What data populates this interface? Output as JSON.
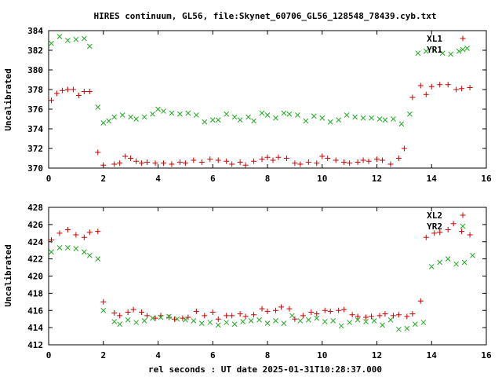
{
  "title": "HIRES continuum, GL56, file:Skynet_60706_GL56_128548_78439.cyb.txt",
  "xlabel": "rel seconds : UT date 2025-01-31T10:28:37.000",
  "colors": {
    "series1": "#cc0000",
    "series2": "#22aa22",
    "axis": "#000000"
  },
  "chart_data": [
    {
      "type": "scatter",
      "ylabel": "Uncalibrated",
      "xlim": [
        0,
        16
      ],
      "ylim": [
        370,
        384
      ],
      "xticks": [
        0,
        2,
        4,
        6,
        8,
        10,
        12,
        14,
        16
      ],
      "yticks": [
        370,
        372,
        374,
        376,
        378,
        380,
        382,
        384
      ],
      "legend_position": "top-right",
      "grid": false,
      "series": [
        {
          "name": "XL1",
          "marker": "plus",
          "color": "#cc0000",
          "x": [
            0.1,
            0.3,
            0.5,
            0.7,
            0.9,
            1.1,
            1.3,
            1.5,
            1.8,
            2.0,
            2.4,
            2.6,
            2.8,
            3.0,
            3.2,
            3.4,
            3.6,
            3.9,
            4.2,
            4.5,
            4.8,
            5.0,
            5.3,
            5.6,
            5.9,
            6.2,
            6.5,
            6.7,
            7.0,
            7.2,
            7.5,
            7.8,
            8.0,
            8.2,
            8.4,
            8.7,
            9.0,
            9.2,
            9.5,
            9.8,
            10.0,
            10.2,
            10.5,
            10.8,
            11.0,
            11.3,
            11.5,
            11.7,
            12.0,
            12.2,
            12.5,
            12.8,
            13.0,
            13.3,
            13.6,
            13.8,
            14.0,
            14.3,
            14.6,
            14.9,
            15.1,
            15.4
          ],
          "y": [
            376.9,
            377.6,
            377.9,
            378.0,
            378.0,
            377.4,
            377.8,
            377.8,
            371.6,
            370.3,
            370.4,
            370.5,
            371.2,
            371.0,
            370.7,
            370.5,
            370.6,
            370.5,
            370.5,
            370.4,
            370.6,
            370.5,
            370.8,
            370.6,
            370.9,
            370.8,
            370.7,
            370.4,
            370.6,
            370.3,
            370.7,
            370.9,
            371.1,
            370.8,
            371.1,
            371.0,
            370.5,
            370.4,
            370.6,
            370.5,
            371.2,
            371.0,
            370.8,
            370.6,
            370.5,
            370.6,
            370.8,
            370.7,
            370.9,
            370.8,
            370.4,
            371.0,
            372.0,
            377.2,
            378.4,
            377.5,
            378.3,
            378.5,
            378.5,
            378.0,
            378.1,
            378.2
          ]
        },
        {
          "name": "YR1",
          "marker": "cross",
          "color": "#22aa22",
          "x": [
            0.1,
            0.4,
            0.7,
            1.0,
            1.3,
            1.5,
            1.8,
            2.0,
            2.2,
            2.4,
            2.7,
            3.0,
            3.2,
            3.5,
            3.8,
            4.0,
            4.2,
            4.5,
            4.8,
            5.1,
            5.4,
            5.7,
            6.0,
            6.2,
            6.5,
            6.8,
            7.0,
            7.3,
            7.5,
            7.8,
            8.0,
            8.3,
            8.6,
            8.8,
            9.1,
            9.4,
            9.7,
            10.0,
            10.3,
            10.6,
            10.9,
            11.2,
            11.5,
            11.8,
            12.1,
            12.3,
            12.6,
            12.9,
            13.2,
            13.5,
            13.8,
            14.1,
            14.4,
            14.7,
            15.0,
            15.3
          ],
          "y": [
            382.7,
            383.4,
            383.0,
            383.1,
            383.2,
            382.4,
            376.2,
            374.6,
            374.8,
            375.2,
            375.4,
            375.2,
            375.0,
            375.2,
            375.5,
            376.0,
            375.8,
            375.6,
            375.5,
            375.6,
            375.4,
            374.7,
            374.9,
            374.9,
            375.5,
            375.2,
            374.9,
            375.2,
            374.8,
            375.6,
            375.4,
            375.1,
            375.6,
            375.5,
            375.4,
            374.8,
            375.3,
            375.1,
            374.7,
            374.9,
            375.4,
            375.2,
            375.1,
            375.1,
            375.0,
            374.9,
            375.0,
            374.5,
            375.5,
            381.7,
            381.9,
            382.0,
            381.7,
            381.6,
            381.9,
            382.2
          ]
        }
      ]
    },
    {
      "type": "scatter",
      "ylabel": "Uncalibrated",
      "xlim": [
        0,
        16
      ],
      "ylim": [
        412,
        428
      ],
      "xticks": [
        0,
        2,
        4,
        6,
        8,
        10,
        12,
        14,
        16
      ],
      "yticks": [
        412,
        414,
        416,
        418,
        420,
        422,
        424,
        426,
        428
      ],
      "legend_position": "top-right",
      "grid": false,
      "series": [
        {
          "name": "XL2",
          "marker": "plus",
          "color": "#cc0000",
          "x": [
            0.1,
            0.4,
            0.7,
            1.0,
            1.3,
            1.5,
            1.8,
            2.0,
            2.4,
            2.6,
            2.9,
            3.1,
            3.4,
            3.6,
            3.9,
            4.1,
            4.4,
            4.6,
            4.9,
            5.1,
            5.4,
            5.7,
            6.0,
            6.2,
            6.5,
            6.7,
            7.0,
            7.2,
            7.5,
            7.8,
            8.0,
            8.3,
            8.5,
            8.8,
            9.0,
            9.3,
            9.6,
            9.8,
            10.1,
            10.3,
            10.6,
            10.8,
            11.1,
            11.3,
            11.6,
            11.8,
            12.1,
            12.3,
            12.6,
            12.8,
            13.1,
            13.3,
            13.6,
            13.8,
            14.1,
            14.3,
            14.6,
            14.8,
            15.1,
            15.4
          ],
          "y": [
            424.2,
            425.0,
            425.4,
            424.8,
            424.5,
            425.1,
            425.2,
            417.0,
            415.7,
            415.4,
            415.8,
            416.1,
            415.8,
            415.4,
            415.1,
            415.4,
            415.2,
            415.0,
            415.1,
            415.2,
            415.9,
            415.4,
            415.8,
            415.0,
            415.4,
            415.4,
            415.6,
            415.3,
            415.5,
            416.2,
            415.9,
            416.0,
            416.4,
            416.2,
            415.0,
            415.4,
            415.8,
            415.6,
            416.0,
            415.9,
            416.0,
            416.1,
            415.5,
            415.3,
            415.2,
            415.3,
            415.4,
            415.6,
            415.4,
            415.5,
            415.3,
            415.6,
            417.1,
            424.5,
            425.0,
            425.1,
            425.4,
            426.1,
            425.2,
            424.8
          ]
        },
        {
          "name": "YR2",
          "marker": "cross",
          "color": "#22aa22",
          "x": [
            0.1,
            0.4,
            0.7,
            1.0,
            1.3,
            1.5,
            1.8,
            2.0,
            2.4,
            2.6,
            2.9,
            3.2,
            3.5,
            3.8,
            4.1,
            4.4,
            4.7,
            5.0,
            5.3,
            5.6,
            5.9,
            6.2,
            6.5,
            6.8,
            7.1,
            7.4,
            7.7,
            8.0,
            8.3,
            8.6,
            8.9,
            9.2,
            9.5,
            9.8,
            10.1,
            10.4,
            10.7,
            11.0,
            11.3,
            11.6,
            11.9,
            12.2,
            12.5,
            12.8,
            13.1,
            13.4,
            13.7,
            14.0,
            14.3,
            14.6,
            14.9,
            15.2,
            15.5
          ],
          "y": [
            422.8,
            423.3,
            423.3,
            423.2,
            422.8,
            422.4,
            422.0,
            416.0,
            414.7,
            414.4,
            414.9,
            414.6,
            414.8,
            415.1,
            415.2,
            415.3,
            415.0,
            414.9,
            414.8,
            414.5,
            414.6,
            414.3,
            414.6,
            414.4,
            414.7,
            414.8,
            414.9,
            414.5,
            414.8,
            414.5,
            415.4,
            414.8,
            414.9,
            415.1,
            414.7,
            414.8,
            414.2,
            414.6,
            414.9,
            414.7,
            414.8,
            414.3,
            414.9,
            413.8,
            413.9,
            414.4,
            414.6,
            421.1,
            421.6,
            422.0,
            421.4,
            421.6,
            422.4
          ]
        }
      ]
    }
  ]
}
